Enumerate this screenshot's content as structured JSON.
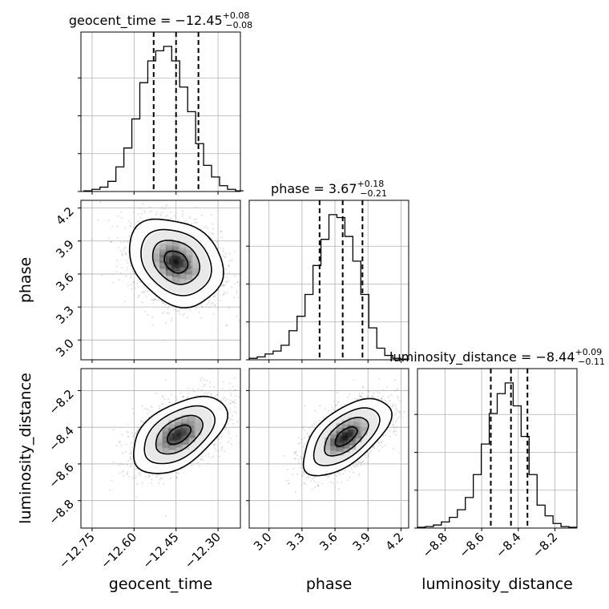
{
  "chart_data": {
    "type": "corner",
    "parameters": [
      {
        "name": "geocent_time",
        "label": "geocent_time",
        "range": [
          -12.79,
          -12.22
        ],
        "ticks": [
          -12.75,
          -12.6,
          -12.45,
          -12.3
        ],
        "tick_labels": [
          "−12.75",
          "−12.60",
          "−12.45",
          "−12.30"
        ],
        "median": -12.45,
        "lower": -12.53,
        "upper": -12.37,
        "title_prefix": "geocent_time = −12.45",
        "title_plus": "+0.08",
        "title_minus": "−0.08",
        "histogram": {
          "edges_start": -12.779,
          "bin_width": 0.0285,
          "counts": [
            0.005,
            0.015,
            0.03,
            0.07,
            0.17,
            0.3,
            0.5,
            0.75,
            0.9,
            0.97,
            1.0,
            0.9,
            0.72,
            0.55,
            0.33,
            0.18,
            0.1,
            0.04,
            0.015,
            0.005
          ]
        }
      },
      {
        "name": "phase",
        "label": "phase",
        "range": [
          2.82,
          4.27
        ],
        "ticks": [
          3.0,
          3.3,
          3.6,
          3.9,
          4.2
        ],
        "tick_labels": [
          "3.0",
          "3.3",
          "3.6",
          "3.9",
          "4.2"
        ],
        "median": 3.67,
        "lower": 3.46,
        "upper": 3.85,
        "title_prefix": "phase = 3.67",
        "title_plus": "+0.18",
        "title_minus": "−0.21",
        "histogram": {
          "edges_start": 2.82,
          "bin_width": 0.0725,
          "counts": [
            0.01,
            0.02,
            0.04,
            0.06,
            0.1,
            0.2,
            0.3,
            0.45,
            0.65,
            0.83,
            1.0,
            0.98,
            0.85,
            0.68,
            0.45,
            0.22,
            0.08,
            0.03,
            0.01,
            0.005
          ]
        }
      },
      {
        "name": "luminosity_distance",
        "label": "luminosity_distance",
        "range": [
          -8.95,
          -8.08
        ],
        "ticks": [
          -8.8,
          -8.6,
          -8.4,
          -8.2
        ],
        "tick_labels": [
          "−8.8",
          "−8.6",
          "−8.4",
          "−8.2"
        ],
        "median": -8.44,
        "lower": -8.55,
        "upper": -8.35,
        "title_prefix": "luminosity_distance = −8.44",
        "title_plus": "+0.09",
        "title_minus": "−0.11",
        "histogram": {
          "edges_start": -8.95,
          "bin_width": 0.0435,
          "counts": [
            0.005,
            0.01,
            0.02,
            0.04,
            0.07,
            0.12,
            0.2,
            0.35,
            0.55,
            0.75,
            0.88,
            0.95,
            0.8,
            0.6,
            0.35,
            0.15,
            0.08,
            0.03,
            0.01,
            0.005
          ]
        }
      }
    ],
    "pairs": [
      {
        "x": "geocent_time",
        "y": "phase",
        "center": [
          -12.45,
          3.71
        ],
        "sd": [
          0.08,
          0.19
        ],
        "corr": -0.25
      },
      {
        "x": "geocent_time",
        "y": "luminosity_distance",
        "center": [
          -12.44,
          -8.44
        ],
        "sd": [
          0.08,
          0.1
        ],
        "corr": 0.5
      },
      {
        "x": "phase",
        "y": "luminosity_distance",
        "center": [
          3.7,
          -8.45
        ],
        "sd": [
          0.19,
          0.1
        ],
        "corr": 0.6
      }
    ],
    "quantile_line_style": "dashed",
    "contour_levels_sigma": [
      0.5,
      1.0,
      1.5,
      2.0
    ],
    "grid": true,
    "colors": {
      "line": "#000000",
      "grid": "#b0b0b0",
      "points": "#8c8c8c"
    }
  }
}
